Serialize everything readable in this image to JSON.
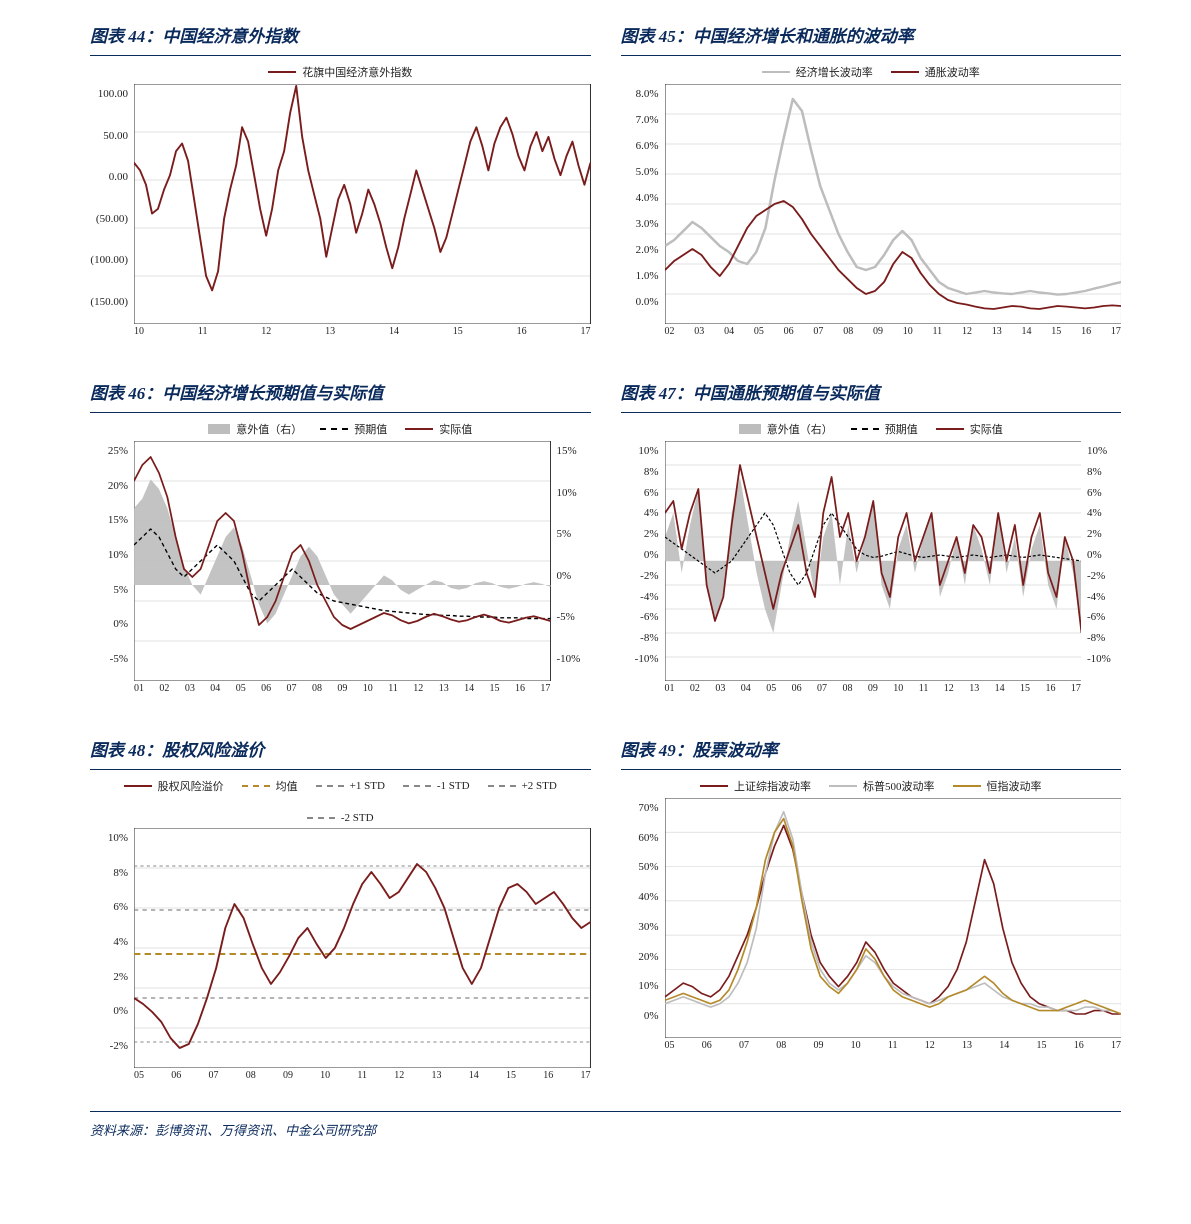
{
  "colors": {
    "dark_red": "#7a1c1c",
    "grey": "#bdbdbd",
    "gold": "#b4892a",
    "white": "#ffffff",
    "grid": "#d9d9d9",
    "axis": "#333333",
    "title": "#0a2a5c"
  },
  "charts": [
    {
      "key": "c44",
      "title_prefix": "图表 44：",
      "title": "中国经济意外指数",
      "type": "line",
      "ylim": [
        -150,
        100
      ],
      "yticks": [
        "100.00",
        "50.00",
        "0.00",
        "(50.00)",
        "(100.00)",
        "(150.00)"
      ],
      "xticks": [
        "10",
        "11",
        "12",
        "13",
        "14",
        "15",
        "16",
        "17"
      ],
      "legend": [
        {
          "label": "花旗中国经济意外指数",
          "color": "#7a1c1c",
          "style": "solid"
        }
      ],
      "series": [
        {
          "color": "#7a1c1c",
          "width": 1.8,
          "data": [
            18,
            10,
            -5,
            -35,
            -30,
            -10,
            5,
            30,
            38,
            20,
            -20,
            -60,
            -100,
            -115,
            -95,
            -40,
            -10,
            15,
            55,
            40,
            5,
            -30,
            -58,
            -30,
            10,
            30,
            70,
            98,
            45,
            10,
            -15,
            -40,
            -80,
            -50,
            -20,
            -5,
            -25,
            -55,
            -35,
            -10,
            -25,
            -45,
            -70,
            -92,
            -70,
            -40,
            -15,
            10,
            -10,
            -30,
            -50,
            -75,
            -60,
            -35,
            -10,
            15,
            40,
            55,
            35,
            10,
            38,
            55,
            65,
            48,
            25,
            10,
            35,
            50,
            30,
            45,
            22,
            5,
            25,
            40,
            15,
            -5,
            18
          ]
        }
      ]
    },
    {
      "key": "c45",
      "title_prefix": "图表 45：",
      "title": "中国经济增长和通胀的波动率",
      "type": "line",
      "ylim": [
        0,
        8
      ],
      "yticks": [
        "8.0%",
        "7.0%",
        "6.0%",
        "5.0%",
        "4.0%",
        "3.0%",
        "2.0%",
        "1.0%",
        "0.0%"
      ],
      "xticks": [
        "02",
        "03",
        "04",
        "05",
        "06",
        "07",
        "08",
        "09",
        "10",
        "11",
        "12",
        "13",
        "14",
        "15",
        "16",
        "17"
      ],
      "legend": [
        {
          "label": "经济增长波动率",
          "color": "#bdbdbd",
          "style": "solid"
        },
        {
          "label": "通胀波动率",
          "color": "#7a1c1c",
          "style": "solid"
        }
      ],
      "series": [
        {
          "color": "#bdbdbd",
          "width": 2.4,
          "data": [
            2.6,
            2.8,
            3.1,
            3.4,
            3.2,
            2.9,
            2.6,
            2.4,
            2.1,
            2.0,
            2.4,
            3.2,
            4.8,
            6.2,
            7.5,
            7.1,
            5.8,
            4.6,
            3.8,
            3.0,
            2.4,
            1.9,
            1.8,
            1.9,
            2.3,
            2.8,
            3.1,
            2.8,
            2.2,
            1.8,
            1.4,
            1.2,
            1.1,
            1.0,
            1.05,
            1.1,
            1.05,
            1.02,
            1.0,
            1.05,
            1.1,
            1.05,
            1.02,
            0.98,
            1.0,
            1.05,
            1.1,
            1.18,
            1.25,
            1.33,
            1.4
          ]
        },
        {
          "color": "#7a1c1c",
          "width": 1.8,
          "data": [
            1.8,
            2.1,
            2.3,
            2.5,
            2.3,
            1.9,
            1.6,
            2.0,
            2.6,
            3.2,
            3.6,
            3.8,
            4.0,
            4.1,
            3.9,
            3.5,
            3.0,
            2.6,
            2.2,
            1.8,
            1.5,
            1.2,
            1.0,
            1.1,
            1.4,
            2.0,
            2.4,
            2.2,
            1.7,
            1.3,
            1.0,
            0.8,
            0.7,
            0.65,
            0.58,
            0.52,
            0.5,
            0.55,
            0.6,
            0.58,
            0.52,
            0.5,
            0.55,
            0.6,
            0.58,
            0.55,
            0.52,
            0.55,
            0.6,
            0.62,
            0.6
          ]
        }
      ]
    },
    {
      "key": "c46",
      "title_prefix": "图表 46：",
      "title": "中国经济增长预期值与实际值",
      "type": "line-area-dual",
      "ylim": [
        -5,
        25
      ],
      "yticks": [
        "25%",
        "20%",
        "15%",
        "10%",
        "5%",
        "0%",
        "-5%"
      ],
      "ylim2": [
        -10,
        15
      ],
      "yticks2": [
        "15%",
        "10%",
        "5%",
        "0%",
        "-5%",
        "-10%"
      ],
      "xticks": [
        "01",
        "02",
        "03",
        "04",
        "05",
        "06",
        "07",
        "08",
        "09",
        "10",
        "11",
        "12",
        "13",
        "14",
        "15",
        "16",
        "17"
      ],
      "legend": [
        {
          "label": "意外值（右）",
          "color": "#bdbdbd",
          "style": "area"
        },
        {
          "label": "预期值",
          "color": "#000000",
          "style": "dash"
        },
        {
          "label": "实际值",
          "color": "#7a1c1c",
          "style": "solid"
        }
      ],
      "area": {
        "color": "#bdbdbd",
        "zero2": 0,
        "data": [
          8,
          9,
          11,
          10,
          8,
          5,
          2,
          0,
          -1,
          1,
          3,
          5,
          6,
          4,
          1,
          -2,
          -4,
          -3,
          -1,
          1,
          3,
          4,
          3,
          1,
          -1,
          -2,
          -3,
          -2,
          -1,
          0,
          1,
          0.5,
          -0.5,
          -1,
          -0.5,
          0,
          0.5,
          0.3,
          -0.3,
          -0.5,
          -0.3,
          0.2,
          0.4,
          0.2,
          -0.2,
          -0.4,
          -0.2,
          0.1,
          0.3,
          0.1,
          -0.2
        ]
      },
      "series": [
        {
          "color": "#000000",
          "width": 1.4,
          "dash": "4,3",
          "data": [
            12,
            13,
            14,
            13,
            11,
            9,
            8,
            9,
            10,
            11,
            12,
            11,
            10,
            8,
            6,
            5,
            6,
            7,
            8,
            9,
            8,
            7,
            6,
            5.5,
            5,
            4.8,
            4.6,
            4.4,
            4.2,
            4.0,
            3.8,
            3.7,
            3.6,
            3.5,
            3.4,
            3.3,
            3.3,
            3.2,
            3.2,
            3.1,
            3.1,
            3.0,
            3.0,
            3.0,
            2.9,
            2.9,
            2.9,
            2.8,
            2.8,
            2.8,
            2.8
          ]
        },
        {
          "color": "#7a1c1c",
          "width": 1.8,
          "data": [
            20,
            22,
            23,
            21,
            18,
            13,
            9,
            8,
            9,
            12,
            15,
            16,
            15,
            11,
            6,
            2,
            3,
            5,
            8,
            11,
            12,
            10,
            7,
            5,
            3,
            2,
            1.5,
            2,
            2.5,
            3,
            3.5,
            3.2,
            2.6,
            2.2,
            2.5,
            3.0,
            3.4,
            3.1,
            2.7,
            2.4,
            2.6,
            3.0,
            3.3,
            3.0,
            2.5,
            2.3,
            2.6,
            2.9,
            3.1,
            2.8,
            2.5
          ]
        }
      ]
    },
    {
      "key": "c47",
      "title_prefix": "图表 47：",
      "title": "中国通胀预期值与实际值",
      "type": "line-area-dual",
      "ylim": [
        -10,
        10
      ],
      "yticks": [
        "10%",
        "8%",
        "6%",
        "4%",
        "2%",
        "0%",
        "-2%",
        "-4%",
        "-6%",
        "-8%",
        "-10%"
      ],
      "ylim2": [
        -10,
        10
      ],
      "yticks2": [
        "10%",
        "8%",
        "6%",
        "4%",
        "2%",
        "0%",
        "-2%",
        "-4%",
        "-6%",
        "-8%",
        "-10%"
      ],
      "xticks": [
        "01",
        "02",
        "03",
        "04",
        "05",
        "06",
        "07",
        "08",
        "09",
        "10",
        "11",
        "12",
        "13",
        "14",
        "15",
        "16",
        "17"
      ],
      "legend": [
        {
          "label": "意外值（右）",
          "color": "#bdbdbd",
          "style": "area"
        },
        {
          "label": "预期值",
          "color": "#000000",
          "style": "dash"
        },
        {
          "label": "实际值",
          "color": "#7a1c1c",
          "style": "solid"
        }
      ],
      "area": {
        "color": "#bdbdbd",
        "zero2": 0,
        "data": [
          2,
          4,
          -1,
          3,
          6,
          -2,
          -5,
          -3,
          4,
          7,
          3,
          -1,
          -4,
          -6,
          -2,
          2,
          5,
          1,
          -3,
          2,
          4,
          -2,
          3,
          -1,
          2,
          5,
          -2,
          -4,
          1,
          3,
          -1,
          2,
          4,
          -3,
          -1,
          2,
          -2,
          3,
          1,
          -2,
          4,
          -1,
          2,
          -3,
          1,
          3,
          -2,
          -4,
          2,
          -1,
          -6
        ]
      },
      "series": [
        {
          "color": "#000000",
          "width": 1.2,
          "dash": "3,2",
          "data": [
            2,
            1.5,
            1,
            0.5,
            0,
            -0.5,
            -1,
            -0.5,
            0,
            1,
            2,
            3,
            4,
            3,
            1,
            -1,
            -2,
            -1,
            1,
            3,
            4,
            3,
            2,
            1,
            0.5,
            0.3,
            0.4,
            0.6,
            0.8,
            0.6,
            0.4,
            0.3,
            0.4,
            0.5,
            0.4,
            0.3,
            0.4,
            0.5,
            0.4,
            0.3,
            0.4,
            0.5,
            0.4,
            0.3,
            0.4,
            0.5,
            0.4,
            0.3,
            0.2,
            0.1,
            0
          ]
        },
        {
          "color": "#7a1c1c",
          "width": 1.8,
          "data": [
            4,
            5,
            1,
            4,
            6,
            -2,
            -5,
            -3,
            3,
            8,
            5,
            2,
            -1,
            -4,
            -1,
            1,
            3,
            -1,
            -3,
            4,
            7,
            2,
            4,
            0,
            2,
            5,
            -1,
            -3,
            2,
            4,
            0,
            2,
            4,
            -2,
            0,
            2,
            -1,
            3,
            2,
            -1,
            4,
            0,
            3,
            -2,
            2,
            4,
            -1,
            -3,
            2,
            0,
            -6
          ]
        }
      ]
    },
    {
      "key": "c48",
      "title_prefix": "图表 48：",
      "title": "股权风险溢价",
      "type": "line-bands",
      "ylim": [
        -2,
        10
      ],
      "yticks": [
        "10%",
        "8%",
        "6%",
        "4%",
        "2%",
        "0%",
        "-2%"
      ],
      "xticks": [
        "05",
        "06",
        "07",
        "08",
        "09",
        "10",
        "11",
        "12",
        "13",
        "14",
        "15",
        "16",
        "17"
      ],
      "legend": [
        {
          "label": "股权风险溢价",
          "color": "#7a1c1c",
          "style": "solid"
        },
        {
          "label": "均值",
          "color": "#b4892a",
          "style": "dash"
        },
        {
          "label": "+1 STD",
          "color": "#888888",
          "style": "dash"
        },
        {
          "label": "-1 STD",
          "color": "#888888",
          "style": "dash"
        },
        {
          "label": "+2 STD",
          "color": "#888888",
          "style": "dash"
        },
        {
          "label": "-2 STD",
          "color": "#888888",
          "style": "dash"
        }
      ],
      "bands": {
        "mean": 3.7,
        "std": 2.2,
        "mean_color": "#b4892a",
        "std_color": "#888888"
      },
      "series": [
        {
          "color": "#7a1c1c",
          "width": 1.8,
          "data": [
            1.5,
            1.2,
            0.8,
            0.3,
            -0.5,
            -1.0,
            -0.8,
            0.2,
            1.5,
            3.0,
            5.0,
            6.2,
            5.5,
            4.2,
            3.0,
            2.2,
            2.8,
            3.6,
            4.5,
            5.0,
            4.2,
            3.5,
            4.0,
            5.0,
            6.2,
            7.2,
            7.8,
            7.2,
            6.5,
            6.8,
            7.5,
            8.2,
            7.8,
            7.0,
            6.0,
            4.5,
            3.0,
            2.2,
            3.0,
            4.5,
            6.0,
            7.0,
            7.2,
            6.8,
            6.2,
            6.5,
            6.8,
            6.2,
            5.5,
            5.0,
            5.3
          ]
        }
      ]
    },
    {
      "key": "c49",
      "title_prefix": "图表 49：",
      "title": "股票波动率",
      "type": "line",
      "ylim": [
        0,
        70
      ],
      "yticks": [
        "70%",
        "60%",
        "50%",
        "40%",
        "30%",
        "20%",
        "10%",
        "0%"
      ],
      "xticks": [
        "05",
        "06",
        "07",
        "08",
        "09",
        "10",
        "11",
        "12",
        "13",
        "14",
        "15",
        "16",
        "17"
      ],
      "legend": [
        {
          "label": "上证综指波动率",
          "color": "#7a1c1c",
          "style": "solid"
        },
        {
          "label": "标普500波动率",
          "color": "#bdbdbd",
          "style": "solid"
        },
        {
          "label": "恒指波动率",
          "color": "#b4892a",
          "style": "solid"
        }
      ],
      "series": [
        {
          "color": "#7a1c1c",
          "width": 1.6,
          "data": [
            12,
            14,
            16,
            15,
            13,
            12,
            14,
            18,
            24,
            30,
            38,
            48,
            56,
            62,
            55,
            42,
            30,
            22,
            18,
            15,
            18,
            22,
            28,
            25,
            20,
            16,
            14,
            12,
            11,
            10,
            12,
            15,
            20,
            28,
            40,
            52,
            45,
            32,
            22,
            16,
            12,
            10,
            9,
            8,
            8,
            7,
            7,
            8,
            8,
            7,
            7
          ]
        },
        {
          "color": "#bdbdbd",
          "width": 1.6,
          "data": [
            10,
            11,
            12,
            11,
            10,
            9,
            10,
            12,
            16,
            22,
            32,
            48,
            60,
            66,
            58,
            42,
            28,
            20,
            16,
            14,
            16,
            20,
            24,
            22,
            18,
            15,
            13,
            12,
            11,
            10,
            11,
            12,
            13,
            14,
            15,
            16,
            14,
            12,
            11,
            10,
            10,
            9,
            9,
            8,
            8,
            8,
            9,
            9,
            8,
            8,
            7
          ]
        },
        {
          "color": "#b4892a",
          "width": 1.6,
          "data": [
            11,
            12,
            13,
            12,
            11,
            10,
            11,
            14,
            20,
            28,
            38,
            52,
            60,
            64,
            56,
            40,
            26,
            18,
            15,
            13,
            16,
            20,
            26,
            23,
            18,
            14,
            12,
            11,
            10,
            9,
            10,
            12,
            13,
            14,
            16,
            18,
            16,
            13,
            11,
            10,
            9,
            8,
            8,
            8,
            9,
            10,
            11,
            10,
            9,
            8,
            7
          ]
        }
      ]
    }
  ],
  "footnote": "资料来源：彭博资讯、万得资讯、中金公司研究部"
}
